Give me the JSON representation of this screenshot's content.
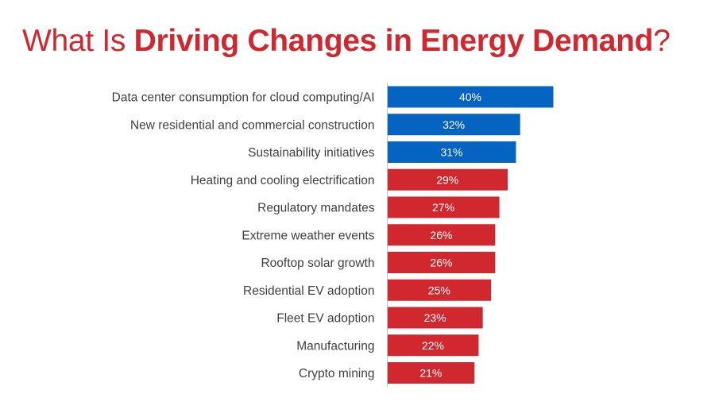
{
  "title": {
    "prefix": "What Is ",
    "emphasis": "Driving Changes in Energy Demand",
    "suffix": "?"
  },
  "colors": {
    "title": "#d0282e",
    "highlight": "#0563c1",
    "default": "#d0282e",
    "axis": "#bfbfbf",
    "label": "#404040"
  },
  "chart_data": {
    "type": "bar",
    "orientation": "horizontal",
    "title": "What Is Driving Changes in Energy Demand?",
    "categories": [
      "Data center consumption for cloud computing/AI",
      "New residential and commercial construction",
      "Sustainability initiatives",
      "Heating and cooling electrification",
      "Regulatory mandates",
      "Extreme weather events",
      "Rooftop solar growth",
      "Residential EV adoption",
      "Fleet EV adoption",
      "Manufacturing",
      "Crypto mining"
    ],
    "values": [
      40,
      32,
      31,
      29,
      27,
      26,
      26,
      25,
      23,
      22,
      21
    ],
    "labels": [
      "40%",
      "32%",
      "31%",
      "29%",
      "27%",
      "26%",
      "26%",
      "25%",
      "23%",
      "22%",
      "21%"
    ],
    "highlight_count": 3,
    "unit": "%",
    "xlim": [
      0,
      40
    ],
    "grid": false,
    "legend": "none"
  }
}
